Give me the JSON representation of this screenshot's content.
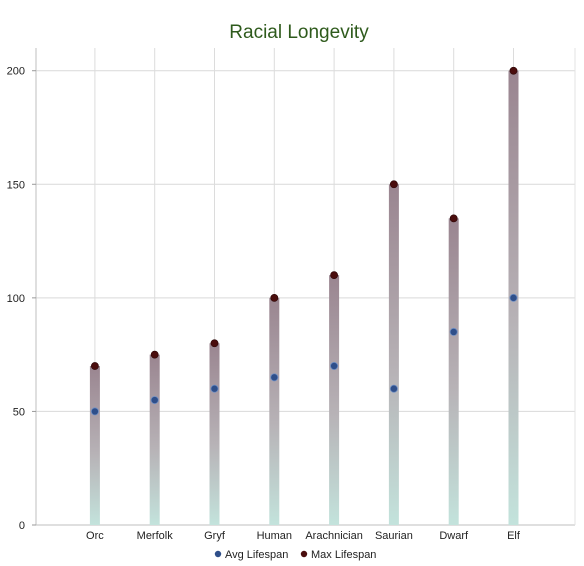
{
  "chart_data": {
    "type": "line",
    "title": "Racial Longevity",
    "title_color": "#2e5a1c",
    "categories": [
      "Orc",
      "Merfolk",
      "Gryf",
      "Human",
      "Arachnician",
      "Saurian",
      "Dwarf",
      "Elf"
    ],
    "series": [
      {
        "name": "Avg Lifespan",
        "values": [
          50,
          55,
          60,
          65,
          70,
          60,
          85,
          100
        ],
        "color": "#2f4f8a"
      },
      {
        "name": "Max Lifespan",
        "values": [
          70,
          75,
          80,
          100,
          110,
          150,
          135,
          200
        ],
        "color": "#4a0d0d"
      }
    ],
    "ylim": [
      0,
      210
    ],
    "yticks": [
      0,
      50,
      100,
      150,
      200
    ],
    "grid": true,
    "legend": "bottom",
    "bar_gradient": {
      "top": "#9a8590",
      "bottom": "#c3e3dc"
    }
  }
}
